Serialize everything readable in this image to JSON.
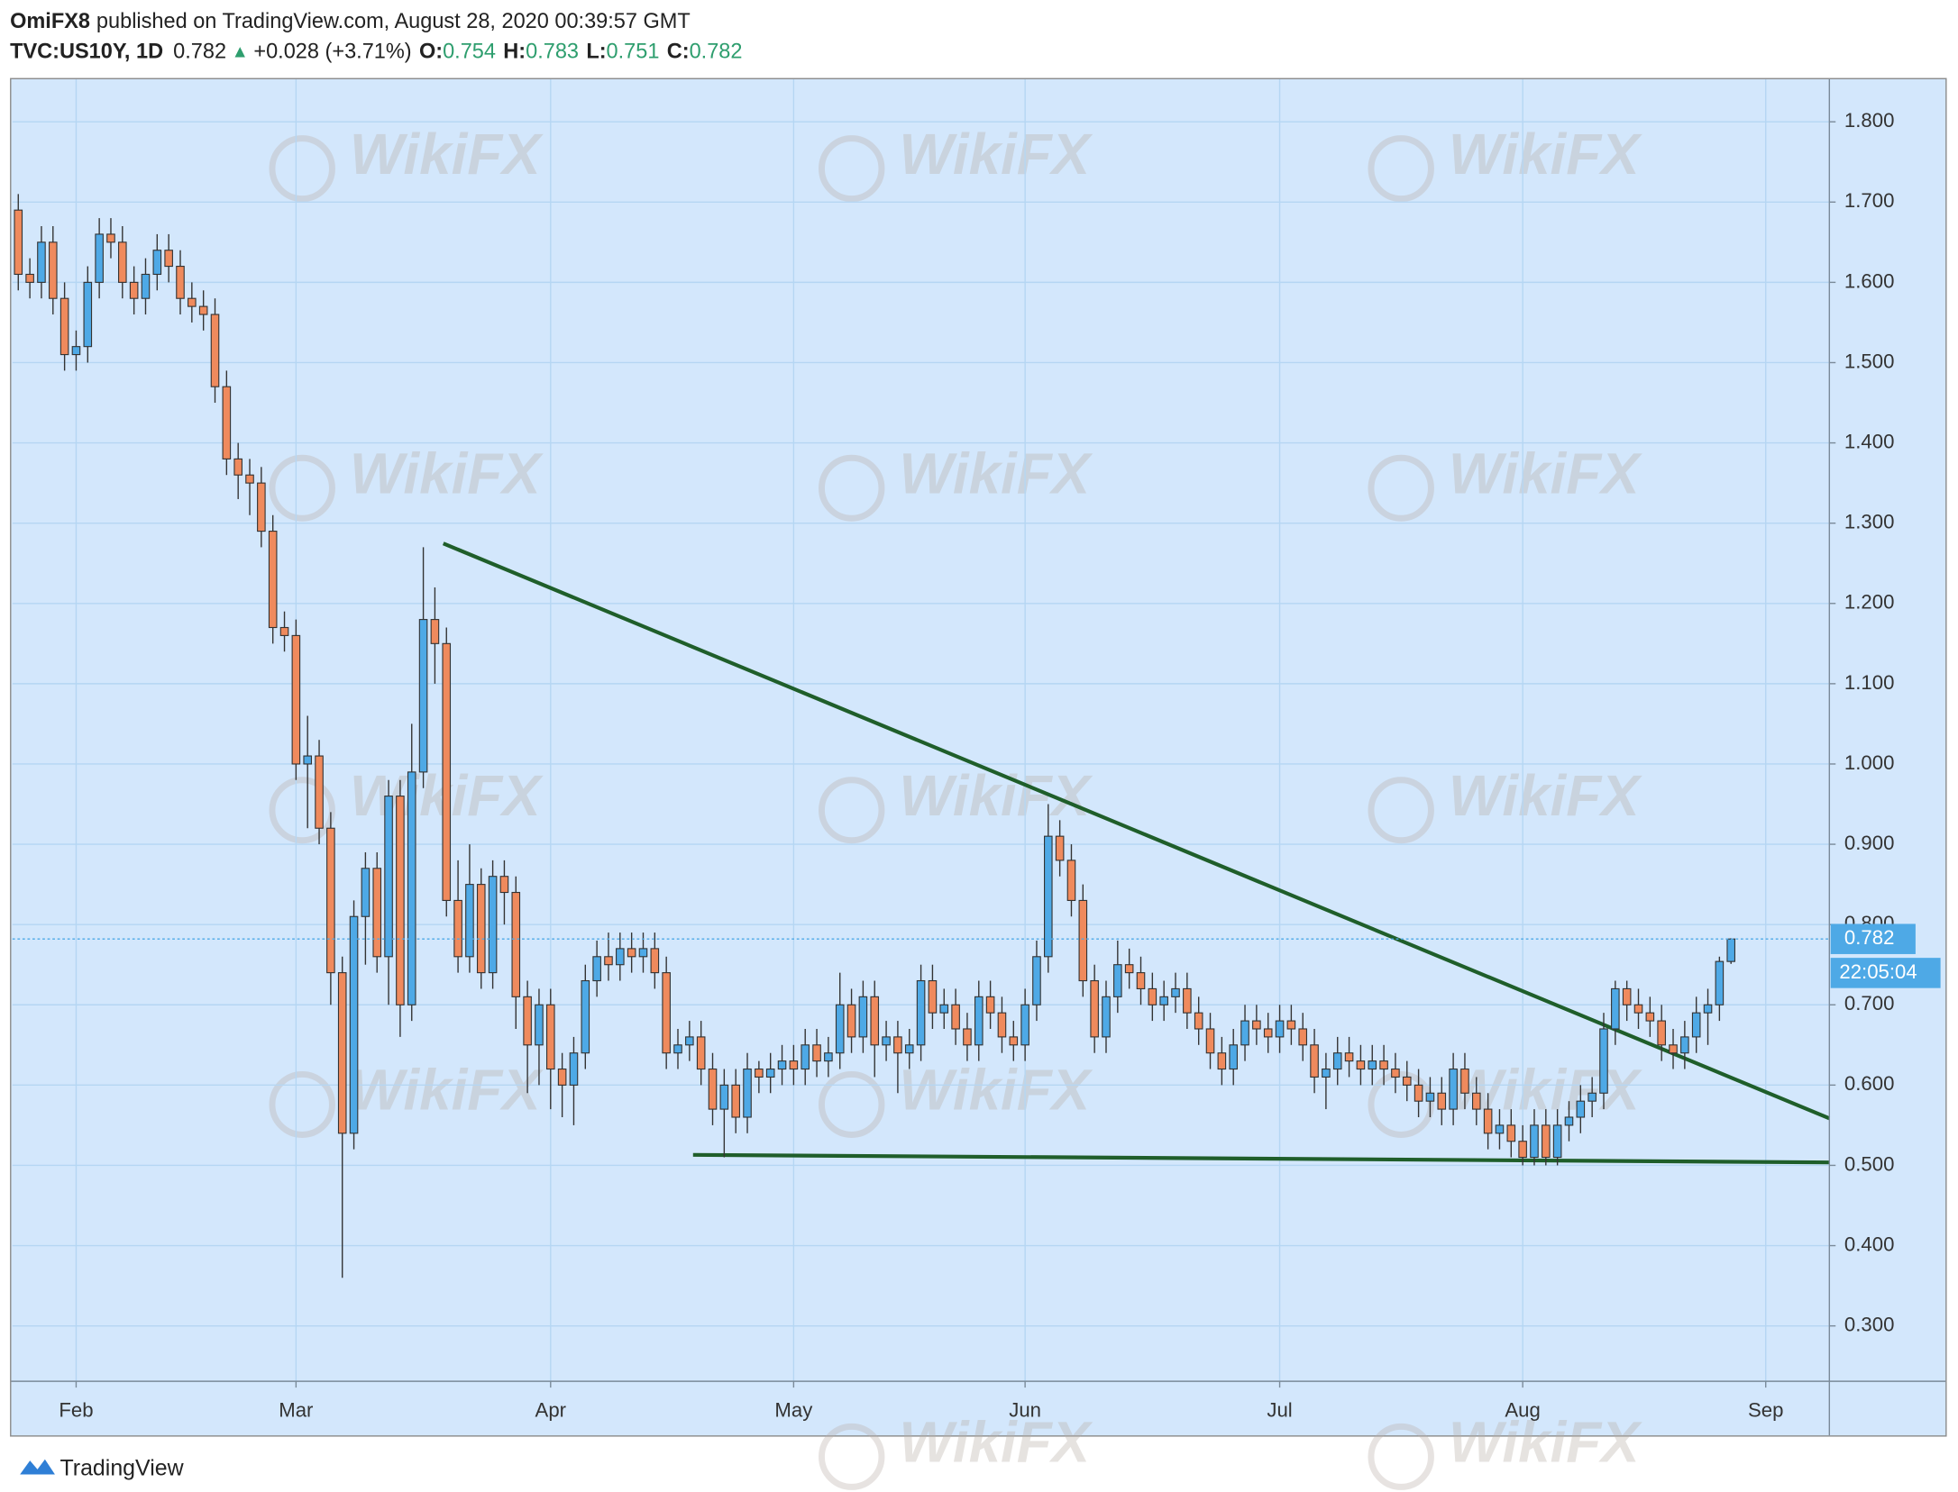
{
  "header": {
    "author": "OmiFX8",
    "published": "published on TradingView.com, August 28, 2020 00:39:57 GMT",
    "symbol": "TVC:US10Y, 1D",
    "last": "0.782",
    "arrow": "▲",
    "change": "+0.028 (+3.71%)",
    "ohlc": [
      {
        "label": "O:",
        "value": "0.754"
      },
      {
        "label": "H:",
        "value": "0.783"
      },
      {
        "label": "L:",
        "value": "0.751"
      },
      {
        "label": "C:",
        "value": "0.782"
      }
    ]
  },
  "watermark": "WikiFX",
  "brand": "TradingView",
  "chart_data": {
    "type": "candlestick",
    "categories": [
      null,
      null,
      null,
      null,
      null,
      "Feb",
      null,
      null,
      null,
      null,
      null,
      null,
      null,
      null,
      null,
      null,
      null,
      null,
      null,
      null,
      null,
      null,
      null,
      null,
      "Mar",
      null,
      null,
      null,
      null,
      null,
      null,
      null,
      null,
      null,
      null,
      null,
      null,
      null,
      null,
      null,
      null,
      null,
      null,
      null,
      null,
      null,
      "Apr",
      null,
      null,
      null,
      null,
      null,
      null,
      null,
      null,
      null,
      null,
      null,
      null,
      null,
      null,
      null,
      null,
      null,
      null,
      null,
      null,
      "May",
      null,
      null,
      null,
      null,
      null,
      null,
      null,
      null,
      null,
      null,
      null,
      null,
      null,
      null,
      null,
      null,
      null,
      null,
      null,
      "Jun",
      null,
      null,
      null,
      null,
      null,
      null,
      null,
      null,
      null,
      null,
      null,
      null,
      null,
      null,
      null,
      null,
      null,
      null,
      null,
      null,
      null,
      "Jul",
      null,
      null,
      null,
      null,
      null,
      null,
      null,
      null,
      null,
      null,
      null,
      null,
      null,
      null,
      null,
      null,
      null,
      null,
      null,
      null,
      "Aug",
      null,
      null,
      null,
      null,
      null,
      null,
      null,
      null,
      null,
      null,
      null,
      null,
      null,
      null,
      null,
      null,
      null,
      null,
      null,
      null,
      "Sep",
      null,
      null,
      null,
      null,
      null
    ],
    "open": [
      1.69,
      1.61,
      1.6,
      1.65,
      1.58,
      1.51,
      1.52,
      1.6,
      1.66,
      1.65,
      1.6,
      1.58,
      1.61,
      1.64,
      1.62,
      1.58,
      1.57,
      1.56,
      1.47,
      1.38,
      1.36,
      1.35,
      1.29,
      1.17,
      1.16,
      1.0,
      1.01,
      0.92,
      0.74,
      0.54,
      0.81,
      0.87,
      0.76,
      0.96,
      0.7,
      0.99,
      1.18,
      1.15,
      0.83,
      0.76,
      0.85,
      0.74,
      0.86,
      0.84,
      0.71,
      0.65,
      0.7,
      0.62,
      0.6,
      0.64,
      0.73,
      0.76,
      0.75,
      0.77,
      0.76,
      0.77,
      0.74,
      0.64,
      0.65,
      0.66,
      0.62,
      0.57,
      0.6,
      0.56,
      0.62,
      0.61,
      0.62,
      0.63,
      0.62,
      0.65,
      0.63,
      0.64,
      0.7,
      0.66,
      0.71,
      0.65,
      0.66,
      0.64,
      0.65,
      0.73,
      0.69,
      0.7,
      0.67,
      0.65,
      0.71,
      0.69,
      0.66,
      0.65,
      0.7,
      0.76,
      0.91,
      0.88,
      0.83,
      0.73,
      0.66,
      0.71,
      0.75,
      0.74,
      0.72,
      0.7,
      0.71,
      0.72,
      0.69,
      0.67,
      0.64,
      0.62,
      0.65,
      0.68,
      0.67,
      0.66,
      0.68,
      0.67,
      0.65,
      0.61,
      0.62,
      0.64,
      0.63,
      0.62,
      0.63,
      0.62,
      0.61,
      0.6,
      0.58,
      0.59,
      0.57,
      0.62,
      0.59,
      0.57,
      0.54,
      0.55,
      0.53,
      0.51,
      0.55,
      0.51,
      0.55,
      0.56,
      0.58,
      0.59,
      0.67,
      0.72,
      0.7,
      0.69,
      0.68,
      0.65,
      0.64,
      0.66,
      0.69,
      0.7,
      0.754,
      null,
      null,
      null,
      null,
      null,
      null,
      null,
      null
    ],
    "high": [
      1.71,
      1.63,
      1.67,
      1.67,
      1.6,
      1.54,
      1.62,
      1.68,
      1.68,
      1.67,
      1.62,
      1.63,
      1.66,
      1.66,
      1.64,
      1.6,
      1.59,
      1.58,
      1.49,
      1.4,
      1.38,
      1.37,
      1.31,
      1.19,
      1.18,
      1.06,
      1.03,
      0.94,
      0.76,
      0.83,
      0.89,
      0.89,
      0.98,
      0.98,
      1.05,
      1.27,
      1.22,
      1.17,
      0.88,
      0.9,
      0.87,
      0.88,
      0.88,
      0.86,
      0.73,
      0.72,
      0.72,
      0.64,
      0.66,
      0.75,
      0.78,
      0.79,
      0.79,
      0.79,
      0.79,
      0.79,
      0.76,
      0.67,
      0.68,
      0.68,
      0.64,
      0.62,
      0.62,
      0.64,
      0.63,
      0.64,
      0.65,
      0.65,
      0.67,
      0.67,
      0.66,
      0.74,
      0.72,
      0.73,
      0.73,
      0.68,
      0.68,
      0.67,
      0.75,
      0.75,
      0.72,
      0.72,
      0.69,
      0.73,
      0.73,
      0.71,
      0.68,
      0.72,
      0.78,
      0.95,
      0.93,
      0.9,
      0.85,
      0.75,
      0.73,
      0.78,
      0.77,
      0.76,
      0.74,
      0.73,
      0.74,
      0.74,
      0.71,
      0.69,
      0.66,
      0.67,
      0.7,
      0.7,
      0.69,
      0.7,
      0.7,
      0.69,
      0.67,
      0.64,
      0.66,
      0.66,
      0.65,
      0.65,
      0.65,
      0.64,
      0.63,
      0.62,
      0.61,
      0.61,
      0.64,
      0.64,
      0.61,
      0.59,
      0.57,
      0.57,
      0.55,
      0.57,
      0.57,
      0.57,
      0.58,
      0.6,
      0.61,
      0.69,
      0.73,
      0.73,
      0.72,
      0.71,
      0.7,
      0.67,
      0.68,
      0.71,
      0.72,
      0.76,
      0.783,
      null,
      null,
      null,
      null,
      null,
      null,
      null,
      null
    ],
    "low": [
      1.59,
      1.58,
      1.58,
      1.56,
      1.49,
      1.49,
      1.5,
      1.58,
      1.63,
      1.58,
      1.56,
      1.56,
      1.59,
      1.6,
      1.56,
      1.55,
      1.54,
      1.45,
      1.36,
      1.33,
      1.31,
      1.27,
      1.15,
      1.14,
      0.98,
      0.92,
      0.9,
      0.7,
      0.36,
      0.52,
      0.75,
      0.74,
      0.7,
      0.66,
      0.68,
      0.97,
      1.1,
      0.81,
      0.74,
      0.74,
      0.72,
      0.72,
      0.8,
      0.67,
      0.59,
      0.6,
      0.57,
      0.56,
      0.55,
      0.62,
      0.71,
      0.73,
      0.73,
      0.74,
      0.74,
      0.72,
      0.62,
      0.62,
      0.63,
      0.6,
      0.55,
      0.51,
      0.54,
      0.54,
      0.59,
      0.59,
      0.6,
      0.6,
      0.6,
      0.61,
      0.61,
      0.62,
      0.64,
      0.64,
      0.61,
      0.63,
      0.59,
      0.62,
      0.63,
      0.67,
      0.67,
      0.65,
      0.63,
      0.63,
      0.67,
      0.64,
      0.63,
      0.63,
      0.68,
      0.74,
      0.86,
      0.81,
      0.71,
      0.64,
      0.64,
      0.69,
      0.72,
      0.7,
      0.68,
      0.68,
      0.69,
      0.67,
      0.65,
      0.62,
      0.6,
      0.6,
      0.63,
      0.65,
      0.64,
      0.64,
      0.65,
      0.63,
      0.59,
      0.57,
      0.6,
      0.61,
      0.6,
      0.6,
      0.6,
      0.59,
      0.58,
      0.56,
      0.56,
      0.55,
      0.55,
      0.57,
      0.55,
      0.52,
      0.52,
      0.51,
      0.5,
      0.5,
      0.5,
      0.5,
      0.53,
      0.54,
      0.56,
      0.57,
      0.65,
      0.68,
      0.67,
      0.66,
      0.63,
      0.62,
      0.62,
      0.64,
      0.65,
      0.68,
      0.751,
      null,
      null,
      null,
      null,
      null,
      null,
      null,
      null
    ],
    "close": [
      1.61,
      1.6,
      1.65,
      1.58,
      1.51,
      1.52,
      1.6,
      1.66,
      1.65,
      1.6,
      1.58,
      1.61,
      1.64,
      1.62,
      1.58,
      1.57,
      1.56,
      1.47,
      1.38,
      1.36,
      1.35,
      1.29,
      1.17,
      1.16,
      1.0,
      1.01,
      0.92,
      0.74,
      0.54,
      0.81,
      0.87,
      0.76,
      0.96,
      0.7,
      0.99,
      1.18,
      1.15,
      0.83,
      0.76,
      0.85,
      0.74,
      0.86,
      0.84,
      0.71,
      0.65,
      0.7,
      0.62,
      0.6,
      0.64,
      0.73,
      0.76,
      0.75,
      0.77,
      0.76,
      0.77,
      0.74,
      0.64,
      0.65,
      0.66,
      0.62,
      0.57,
      0.6,
      0.56,
      0.62,
      0.61,
      0.62,
      0.63,
      0.62,
      0.65,
      0.63,
      0.64,
      0.7,
      0.66,
      0.71,
      0.65,
      0.66,
      0.64,
      0.65,
      0.73,
      0.69,
      0.7,
      0.67,
      0.65,
      0.71,
      0.69,
      0.66,
      0.65,
      0.7,
      0.76,
      0.91,
      0.88,
      0.83,
      0.73,
      0.66,
      0.71,
      0.75,
      0.74,
      0.72,
      0.7,
      0.71,
      0.72,
      0.69,
      0.67,
      0.64,
      0.62,
      0.65,
      0.68,
      0.67,
      0.66,
      0.68,
      0.67,
      0.65,
      0.61,
      0.62,
      0.64,
      0.63,
      0.62,
      0.63,
      0.62,
      0.61,
      0.6,
      0.58,
      0.59,
      0.57,
      0.62,
      0.59,
      0.57,
      0.54,
      0.55,
      0.53,
      0.51,
      0.55,
      0.51,
      0.55,
      0.56,
      0.58,
      0.59,
      0.67,
      0.72,
      0.7,
      0.69,
      0.68,
      0.65,
      0.64,
      0.66,
      0.69,
      0.7,
      0.754,
      0.782,
      null,
      null,
      null,
      null,
      null,
      null,
      null,
      null
    ],
    "up_color": "#4ea9e6",
    "down_color": "#ef8a5d",
    "ylim": [
      0.231,
      1.853
    ],
    "yticks": [
      {
        "value": 0.3,
        "label": "0.300"
      },
      {
        "value": 0.4,
        "label": "0.400"
      },
      {
        "value": 0.5,
        "label": "0.500"
      },
      {
        "value": 0.6,
        "label": "0.600"
      },
      {
        "value": 0.7,
        "label": "0.700"
      },
      {
        "value": 0.8,
        "label": "0.800"
      },
      {
        "value": 0.9,
        "label": "0.900"
      },
      {
        "value": 1.0,
        "label": "1.000"
      },
      {
        "value": 1.1,
        "label": "1.100"
      },
      {
        "value": 1.2,
        "label": "1.200"
      },
      {
        "value": 1.3,
        "label": "1.300"
      },
      {
        "value": 1.4,
        "label": "1.400"
      },
      {
        "value": 1.5,
        "label": "1.500"
      },
      {
        "value": 1.6,
        "label": "1.600"
      },
      {
        "value": 1.7,
        "label": "1.700"
      },
      {
        "value": 1.8,
        "label": "1.800"
      }
    ],
    "grid": true,
    "last_price": 0.782,
    "countdown": "22:05:04"
  }
}
